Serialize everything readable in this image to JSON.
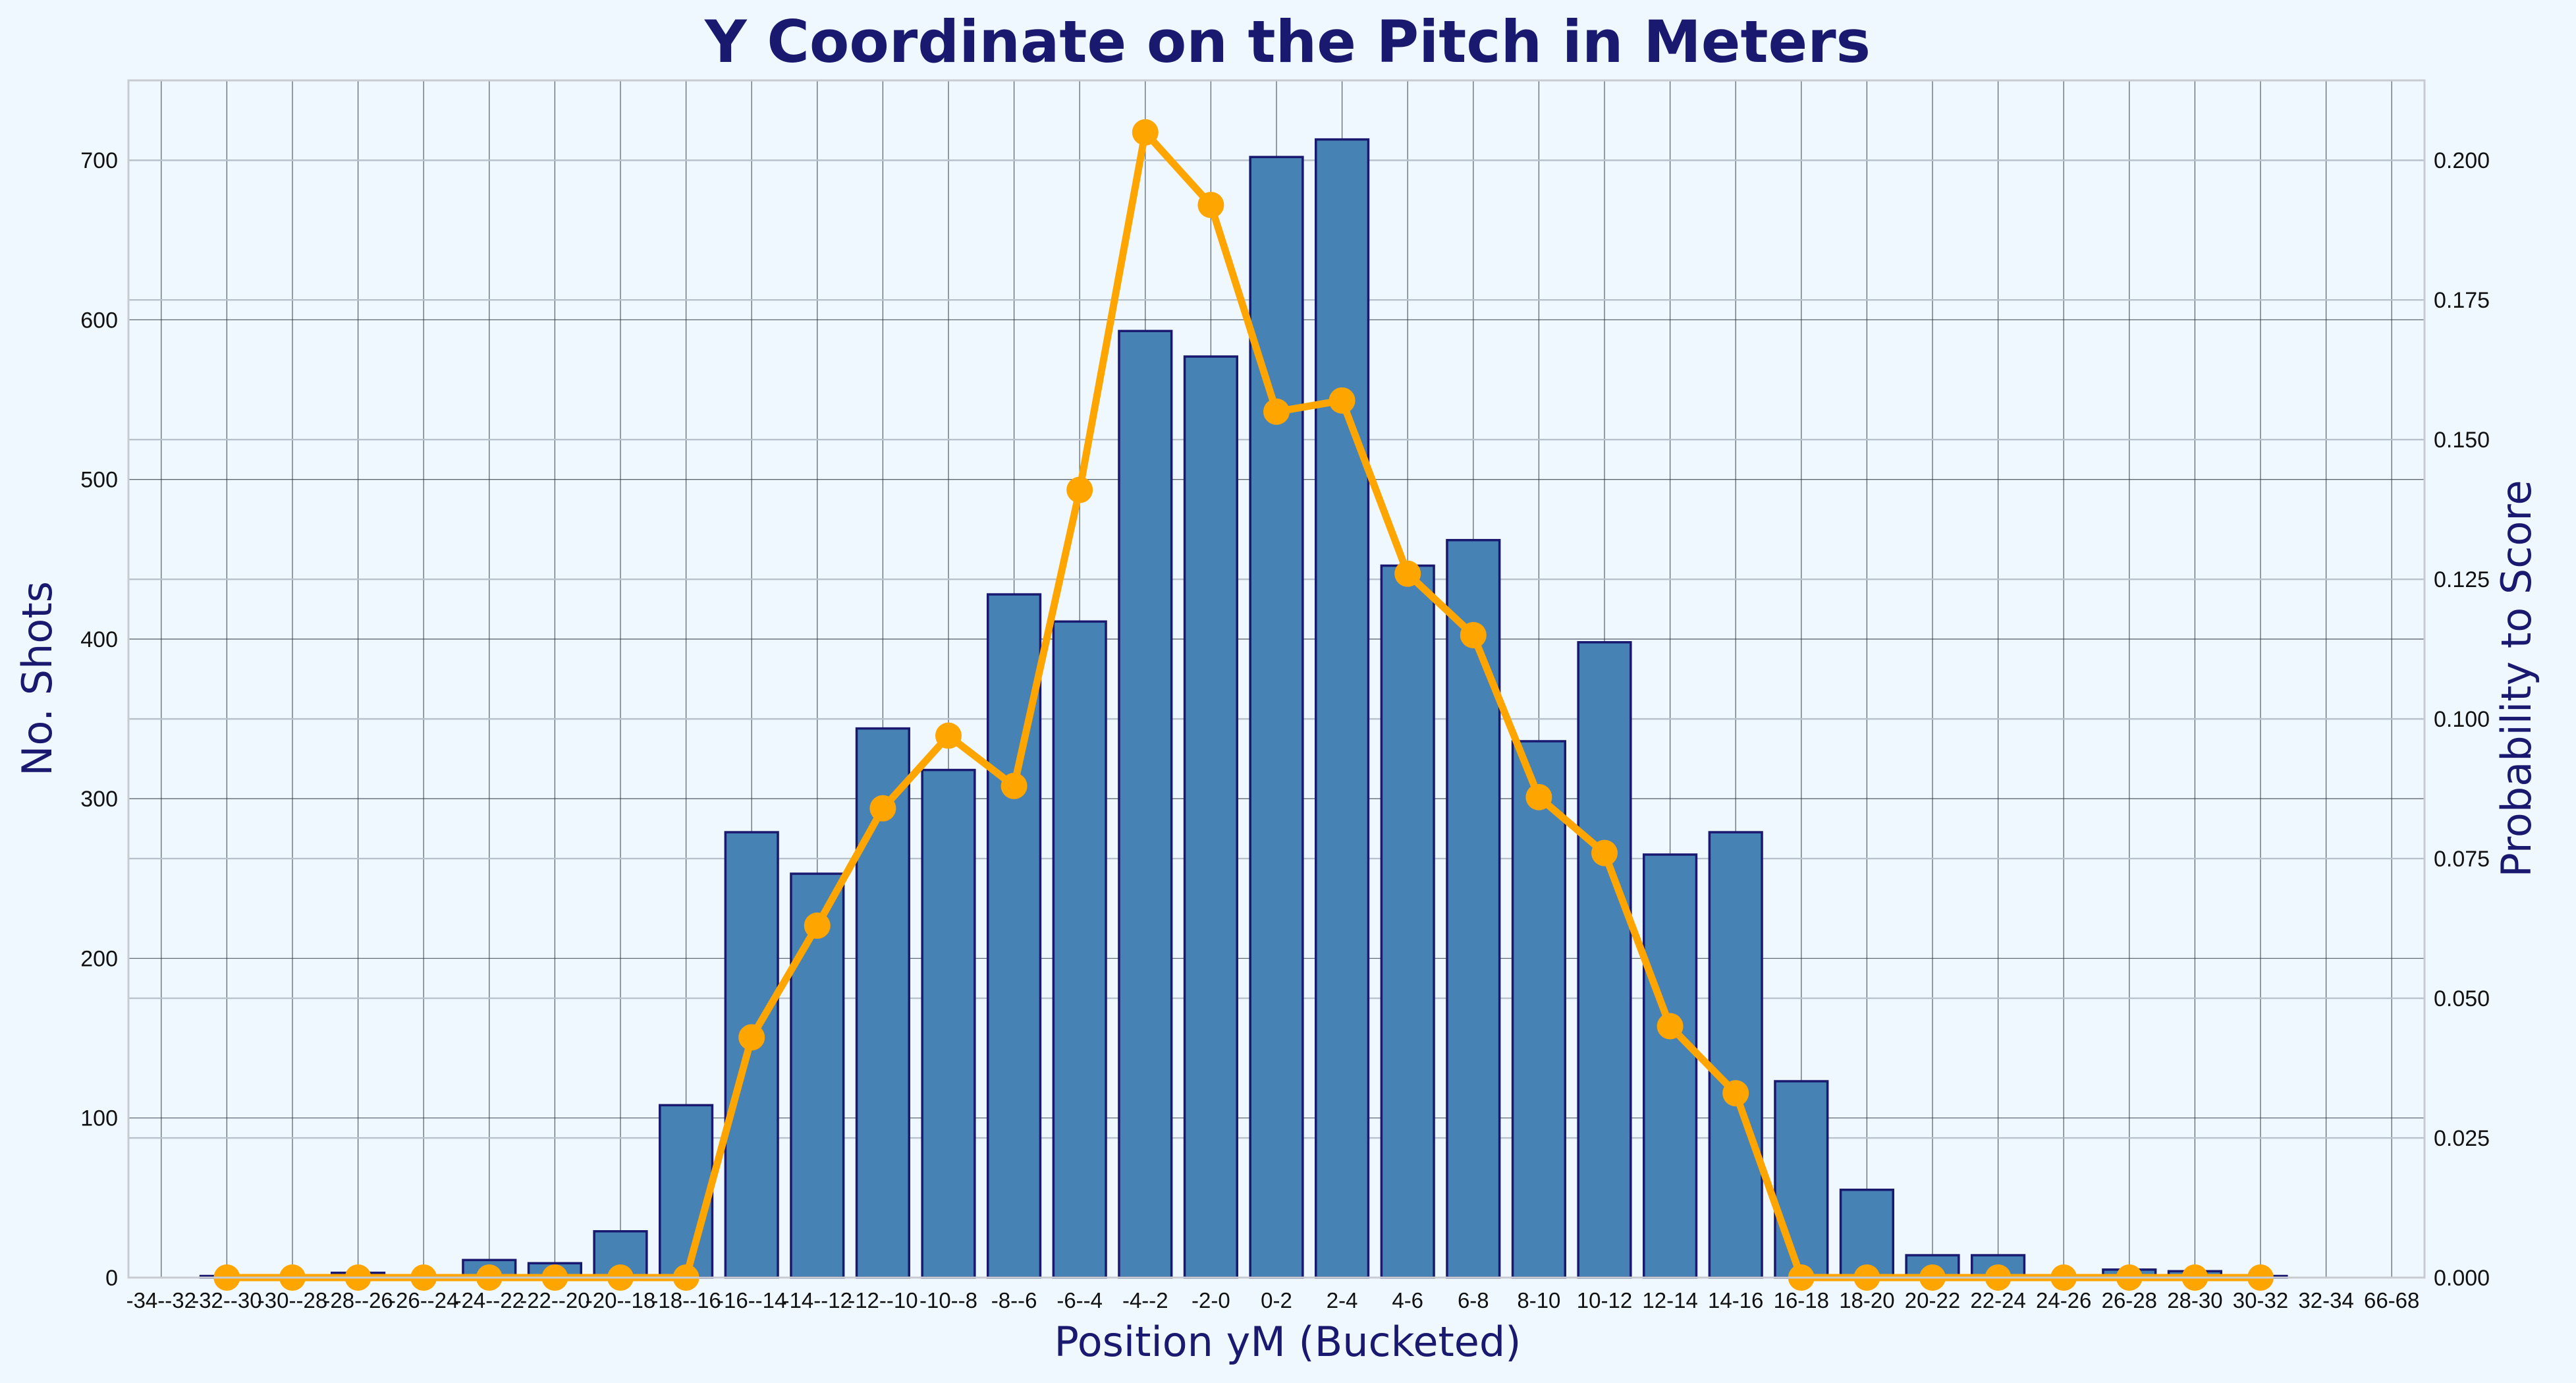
{
  "chart_data": {
    "type": "bar",
    "title": "Y Coordinate on the Pitch in Meters",
    "xlabel": "Position yM (Bucketed)",
    "ylabel": "No. Shots",
    "y2label": "Probability to Score",
    "categories": [
      "-34--32",
      "-32--30",
      "-30--28",
      "-28--26",
      "-26--24",
      "-24--22",
      "-22--20",
      "-20--18",
      "-18--16",
      "-16--14",
      "-14--12",
      "-12--10",
      "-10--8",
      "-8--6",
      "-6--4",
      "-4--2",
      "-2-0",
      "0-2",
      "2-4",
      "4-6",
      "6-8",
      "8-10",
      "10-12",
      "12-14",
      "14-16",
      "16-18",
      "18-20",
      "20-22",
      "22-24",
      "24-26",
      "26-28",
      "28-30",
      "30-32",
      "32-34",
      "66-68"
    ],
    "ylim": [
      0,
      750
    ],
    "yticks": [
      0,
      100,
      200,
      300,
      400,
      500,
      600,
      700
    ],
    "y2lim": [
      0,
      0.2143
    ],
    "y2ticks": [
      0.0,
      0.025,
      0.05,
      0.075,
      0.1,
      0.125,
      0.15,
      0.175,
      0.2
    ],
    "grid": true,
    "series": [
      {
        "type": "bar",
        "axis": "left",
        "color": "#4682b4",
        "edgecolor": "#191970",
        "values": [
          null,
          1,
          0,
          3,
          0,
          11,
          9,
          29,
          108,
          279,
          253,
          344,
          318,
          428,
          411,
          593,
          577,
          702,
          713,
          446,
          462,
          336,
          398,
          265,
          279,
          123,
          55,
          14,
          14,
          0,
          5,
          4,
          1,
          0,
          null
        ]
      },
      {
        "type": "line",
        "axis": "right",
        "color": "#ffa500",
        "values": [
          null,
          0,
          0,
          0,
          0,
          0,
          0,
          0,
          0,
          0.043,
          0.063,
          0.084,
          0.097,
          0.088,
          0.141,
          0.205,
          0.192,
          0.155,
          0.157,
          0.126,
          0.115,
          0.086,
          0.076,
          0.045,
          0.033,
          0,
          0,
          0,
          0,
          0,
          0,
          0,
          0,
          null,
          null
        ]
      }
    ]
  }
}
